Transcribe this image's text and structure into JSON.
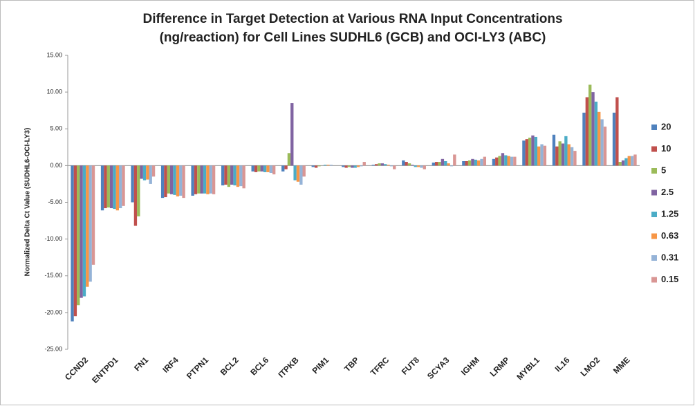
{
  "chart_data": {
    "type": "bar",
    "title": "Difference in Target Detection at Various RNA Input Concentrations (ng/reaction) for Cell Lines SUDHL6 (GCB) and OCI-LY3 (ABC)",
    "y_label": "Normalized Delta Ct Value (SUDHL6-OCI-LY3)",
    "categories": [
      "CCND2",
      "ENTPD1",
      "FN1",
      "IRF4",
      "PTPN1",
      "BCL2",
      "BCL6",
      "ITPKB",
      "PIM1",
      "TBP",
      "TFRC",
      "FUT8",
      "SCYA3",
      "IGHM",
      "LRMP",
      "MYBL1",
      "IL16",
      "LMO2",
      "MME"
    ],
    "series": [
      {
        "name": "20",
        "color": "#4f81bd",
        "values": [
          -21.2,
          -6.1,
          -5.0,
          -4.4,
          -4.1,
          -2.7,
          -0.8,
          -0.8,
          -0.2,
          -0.2,
          0.1,
          0.7,
          0.4,
          0.6,
          0.9,
          3.4,
          4.2,
          7.2,
          7.2
        ]
      },
      {
        "name": "10",
        "color": "#c0504d",
        "values": [
          -20.5,
          -5.8,
          -8.2,
          -4.3,
          -3.9,
          -2.6,
          -0.9,
          -0.5,
          -0.3,
          -0.3,
          0.2,
          0.5,
          0.5,
          0.6,
          1.1,
          3.6,
          2.6,
          9.3,
          9.3
        ]
      },
      {
        "name": "5",
        "color": "#9bbb59",
        "values": [
          -19.0,
          -5.7,
          -6.9,
          -3.8,
          -3.8,
          -2.9,
          -0.8,
          1.7,
          -0.1,
          -0.2,
          0.3,
          0.3,
          0.5,
          0.7,
          1.3,
          3.8,
          3.3,
          11.0,
          0.5
        ]
      },
      {
        "name": "2.5",
        "color": "#8064a2",
        "values": [
          -18.0,
          -5.8,
          -1.8,
          -3.9,
          -3.8,
          -2.6,
          -0.8,
          8.5,
          0.0,
          -0.3,
          0.3,
          0.1,
          0.9,
          0.9,
          1.7,
          4.1,
          3.0,
          10.0,
          0.7
        ]
      },
      {
        "name": "1.25",
        "color": "#4bacc6",
        "values": [
          -17.8,
          -5.9,
          -2.0,
          -4.0,
          -3.8,
          -2.7,
          -0.9,
          -2.0,
          0.1,
          -0.3,
          0.2,
          -0.2,
          0.6,
          0.8,
          1.4,
          3.9,
          4.0,
          8.7,
          1.0
        ]
      },
      {
        "name": "0.63",
        "color": "#f79646",
        "values": [
          -16.5,
          -6.1,
          -1.9,
          -4.2,
          -3.9,
          -2.9,
          -0.9,
          -2.2,
          0.1,
          -0.2,
          0.1,
          -0.2,
          0.3,
          0.7,
          1.3,
          2.6,
          2.9,
          7.3,
          1.3
        ]
      },
      {
        "name": "0.31",
        "color": "#95b3d7",
        "values": [
          -15.8,
          -5.8,
          -2.5,
          -4.1,
          -3.8,
          -2.8,
          -1.0,
          -2.6,
          0.1,
          -0.1,
          -0.1,
          -0.3,
          -0.1,
          0.9,
          1.2,
          2.9,
          2.5,
          6.3,
          1.3
        ]
      },
      {
        "name": "0.15",
        "color": "#d99694",
        "values": [
          -13.5,
          -5.5,
          -1.5,
          -4.4,
          -3.9,
          -3.1,
          -1.2,
          -1.5,
          0.0,
          0.5,
          -0.5,
          -0.5,
          1.5,
          1.2,
          1.2,
          2.7,
          2.0,
          5.3,
          1.5
        ]
      }
    ],
    "ylim": [
      -25,
      15
    ],
    "yticks": [
      {
        "value": 15,
        "label": "15.00"
      },
      {
        "value": 10,
        "label": "10.00"
      },
      {
        "value": 5,
        "label": "5.00"
      },
      {
        "value": 0,
        "label": "0.00"
      },
      {
        "value": -5,
        "label": "-5.00"
      },
      {
        "value": -10,
        "label": "-10.00"
      },
      {
        "value": -15,
        "label": "-15.00"
      },
      {
        "value": -20,
        "label": "-20.00"
      },
      {
        "value": -25,
        "label": "-25.00"
      }
    ],
    "grid": false,
    "legend": "right"
  }
}
